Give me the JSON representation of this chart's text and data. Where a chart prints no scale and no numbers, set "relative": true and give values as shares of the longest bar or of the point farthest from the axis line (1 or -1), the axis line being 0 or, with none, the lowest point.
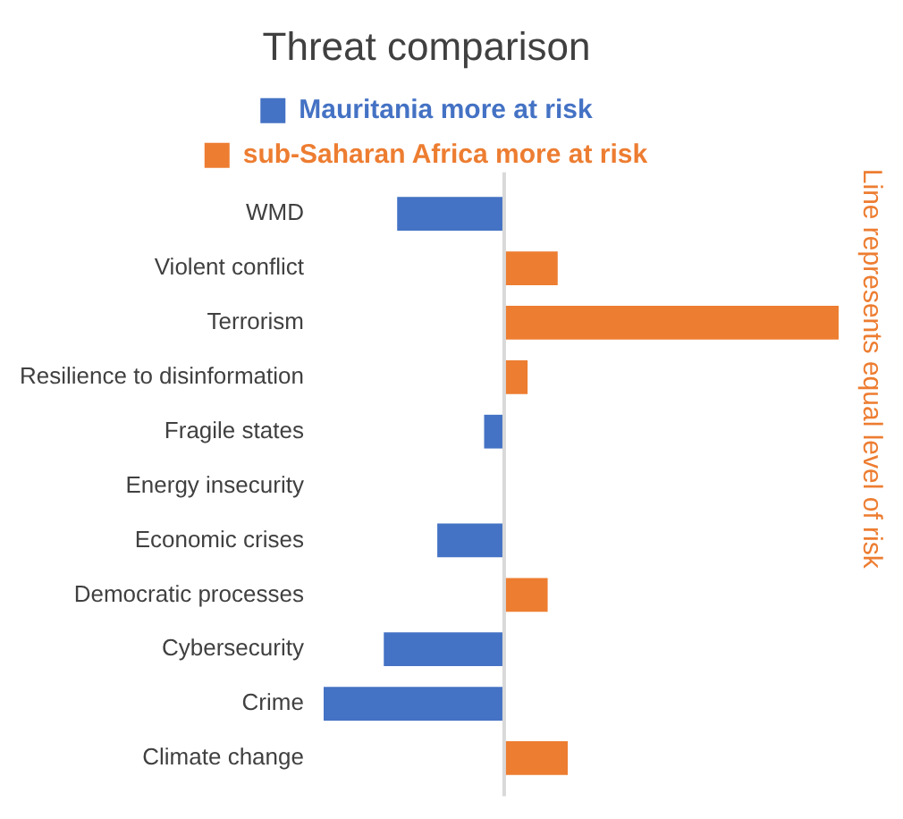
{
  "chart_data": {
    "type": "bar",
    "orientation": "horizontal",
    "stacked": true,
    "relative": true,
    "title": "Threat comparison",
    "categories": [
      "WMD",
      "Violent conflict",
      "Terrorism",
      "Resilience to disinformation",
      "Fragile states",
      "Energy insecurity",
      "Economic crises",
      "Democratic processes",
      "Cybersecurity",
      "Crime",
      "Climate change"
    ],
    "series": [
      {
        "name": "Mauritania more at risk",
        "color": "#4472c4",
        "values": [
          -0.32,
          null,
          null,
          null,
          -0.06,
          null,
          -0.2,
          null,
          -0.36,
          -0.54,
          null
        ]
      },
      {
        "name": "sub-Saharan Africa more at risk",
        "color": "#ed7d31",
        "values": [
          null,
          0.16,
          1,
          0.07,
          null,
          null,
          null,
          0.13,
          null,
          null,
          0.19
        ]
      }
    ],
    "ref_lines": [
      {
        "axis": "x",
        "value": 0,
        "color": "#d9d9d9"
      }
    ],
    "annotations": [
      "Line represents equal level of risk"
    ],
    "legend": "top"
  }
}
